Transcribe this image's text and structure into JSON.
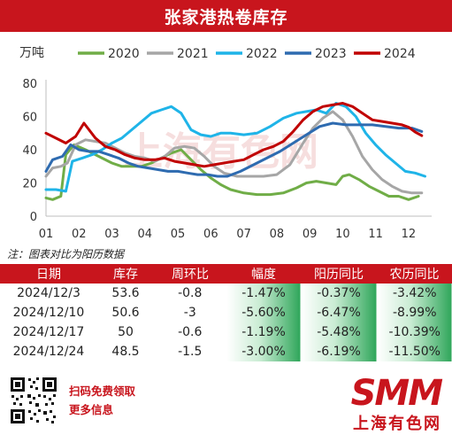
{
  "title": "张家港热卷库存",
  "note": "注：图表对比为阳历数据",
  "chart_data": {
    "type": "line",
    "unit_label": "万吨",
    "ylim": [
      0,
      80
    ],
    "yticks": [
      0,
      20,
      40,
      60,
      80
    ],
    "xlim": [
      1,
      12.7
    ],
    "month_labels": [
      "01",
      "02",
      "03",
      "04",
      "05",
      "06",
      "07",
      "08",
      "09",
      "10",
      "11",
      "12"
    ],
    "grid": false,
    "legend": "top",
    "watermark": "上海有色网",
    "series": [
      {
        "name": "2020",
        "color": "#70ad47",
        "x": [
          1,
          1.2,
          1.45,
          1.6,
          1.85,
          2.2,
          2.6,
          3.0,
          3.3,
          3.6,
          3.9,
          4.2,
          4.5,
          4.8,
          5.1,
          5.4,
          5.7,
          6.0,
          6.3,
          6.6,
          7.0,
          7.4,
          7.8,
          8.2,
          8.6,
          8.9,
          9.2,
          9.5,
          9.8,
          10.0,
          10.2,
          10.5,
          10.8,
          11.1,
          11.4,
          11.7,
          12.0,
          12.3
        ],
        "y": [
          11,
          10,
          12,
          37,
          43,
          40,
          36,
          32,
          30,
          30,
          30,
          32,
          35,
          38,
          40,
          34,
          28,
          23,
          19,
          16,
          14,
          13,
          13,
          14,
          17,
          20,
          21,
          20,
          19,
          24,
          25,
          22,
          18,
          15,
          12,
          12,
          10,
          12
        ]
      },
      {
        "name": "2021",
        "color": "#a6a6a6",
        "x": [
          1,
          1.2,
          1.45,
          1.65,
          1.9,
          2.2,
          2.5,
          2.8,
          3.1,
          3.4,
          3.7,
          4.0,
          4.3,
          4.6,
          4.9,
          5.2,
          5.5,
          5.8,
          6.1,
          6.4,
          6.8,
          7.2,
          7.6,
          8.0,
          8.4,
          8.8,
          9.1,
          9.4,
          9.7,
          10.0,
          10.3,
          10.6,
          10.9,
          11.2,
          11.5,
          11.8,
          12.1,
          12.4
        ],
        "y": [
          24,
          29,
          30,
          32,
          43,
          46,
          45,
          44,
          41,
          38,
          36,
          35,
          33,
          36,
          41,
          42,
          41,
          36,
          30,
          26,
          24,
          24,
          24,
          25,
          31,
          44,
          53,
          59,
          63,
          58,
          48,
          36,
          28,
          22,
          18,
          15,
          14,
          14
        ]
      },
      {
        "name": "2022",
        "color": "#1fb4e8",
        "x": [
          1,
          1.3,
          1.6,
          1.8,
          2.1,
          2.4,
          2.7,
          3.0,
          3.3,
          3.6,
          3.9,
          4.2,
          4.5,
          4.8,
          5.1,
          5.4,
          5.7,
          6.0,
          6.3,
          6.6,
          7.0,
          7.4,
          7.8,
          8.2,
          8.6,
          8.9,
          9.2,
          9.5,
          9.8,
          10.1,
          10.4,
          10.7,
          11.0,
          11.3,
          11.6,
          11.9,
          12.2,
          12.5
        ],
        "y": [
          16,
          16,
          15,
          33,
          35,
          37,
          40,
          44,
          47,
          52,
          57,
          62,
          64,
          66,
          62,
          52,
          49,
          48,
          50,
          50,
          49,
          50,
          54,
          59,
          62,
          63,
          64,
          62,
          68,
          66,
          60,
          50,
          43,
          37,
          32,
          27,
          26,
          24
        ]
      },
      {
        "name": "2023",
        "color": "#2e6bb0",
        "x": [
          1,
          1.2,
          1.5,
          1.75,
          2.0,
          2.3,
          2.6,
          2.9,
          3.2,
          3.5,
          3.8,
          4.1,
          4.4,
          4.7,
          5.0,
          5.3,
          5.6,
          5.9,
          6.2,
          6.5,
          6.9,
          7.3,
          7.7,
          8.1,
          8.5,
          8.9,
          9.3,
          9.7,
          10.1,
          10.5,
          10.9,
          11.3,
          11.7,
          12.1,
          12.4
        ],
        "y": [
          27,
          34,
          36,
          43,
          40,
          39,
          39,
          37,
          35,
          32,
          30,
          29,
          28,
          27,
          27,
          26,
          25,
          25,
          24,
          24,
          27,
          31,
          35,
          39,
          44,
          49,
          54,
          56,
          55,
          55,
          55,
          54,
          53,
          53,
          51
        ]
      },
      {
        "name": "2024",
        "color": "#c00000",
        "x": [
          1,
          1.3,
          1.6,
          1.9,
          2.15,
          2.5,
          2.8,
          3.1,
          3.4,
          3.7,
          4.0,
          4.3,
          4.6,
          4.9,
          5.2,
          5.5,
          5.8,
          6.1,
          6.4,
          6.7,
          7.0,
          7.3,
          7.6,
          7.9,
          8.2,
          8.5,
          8.8,
          9.1,
          9.4,
          9.7,
          10.0,
          10.3,
          10.6,
          10.9,
          11.2,
          11.5,
          11.8,
          12.0,
          12.2,
          12.4
        ],
        "y": [
          50,
          47,
          44,
          48,
          56,
          47,
          42,
          40,
          37,
          35,
          34,
          34,
          35,
          33,
          32,
          31,
          30,
          31,
          32,
          33,
          34,
          37,
          40,
          42,
          45,
          51,
          58,
          63,
          66,
          67,
          68,
          66,
          62,
          58,
          57,
          56,
          55,
          53.6,
          50.6,
          48.5
        ]
      }
    ]
  },
  "table": {
    "headers": [
      "日期",
      "库存",
      "周环比",
      "幅度",
      "阳历同比",
      "农历同比"
    ],
    "rows": [
      {
        "date": "2024/12/3",
        "stock": "53.6",
        "wow": "-0.8",
        "rate": "-1.47%",
        "solar": "-0.37%",
        "lunar": "-3.42%"
      },
      {
        "date": "2024/12/10",
        "stock": "50.6",
        "wow": "-3",
        "rate": "-5.60%",
        "solar": "-6.47%",
        "lunar": "-8.99%"
      },
      {
        "date": "2024/12/17",
        "stock": "50",
        "wow": "-0.6",
        "rate": "-1.19%",
        "solar": "-5.48%",
        "lunar": "-10.39%"
      },
      {
        "date": "2024/12/24",
        "stock": "48.5",
        "wow": "-1.5",
        "rate": "-3.00%",
        "solar": "-6.19%",
        "lunar": "-11.50%"
      }
    ]
  },
  "footer": {
    "promo_line1": "扫码免费领取",
    "promo_line2": "更多信息",
    "brand_en": "SMM",
    "brand_cn": "上海有色网",
    "qr_icon": "qr-code-icon"
  }
}
